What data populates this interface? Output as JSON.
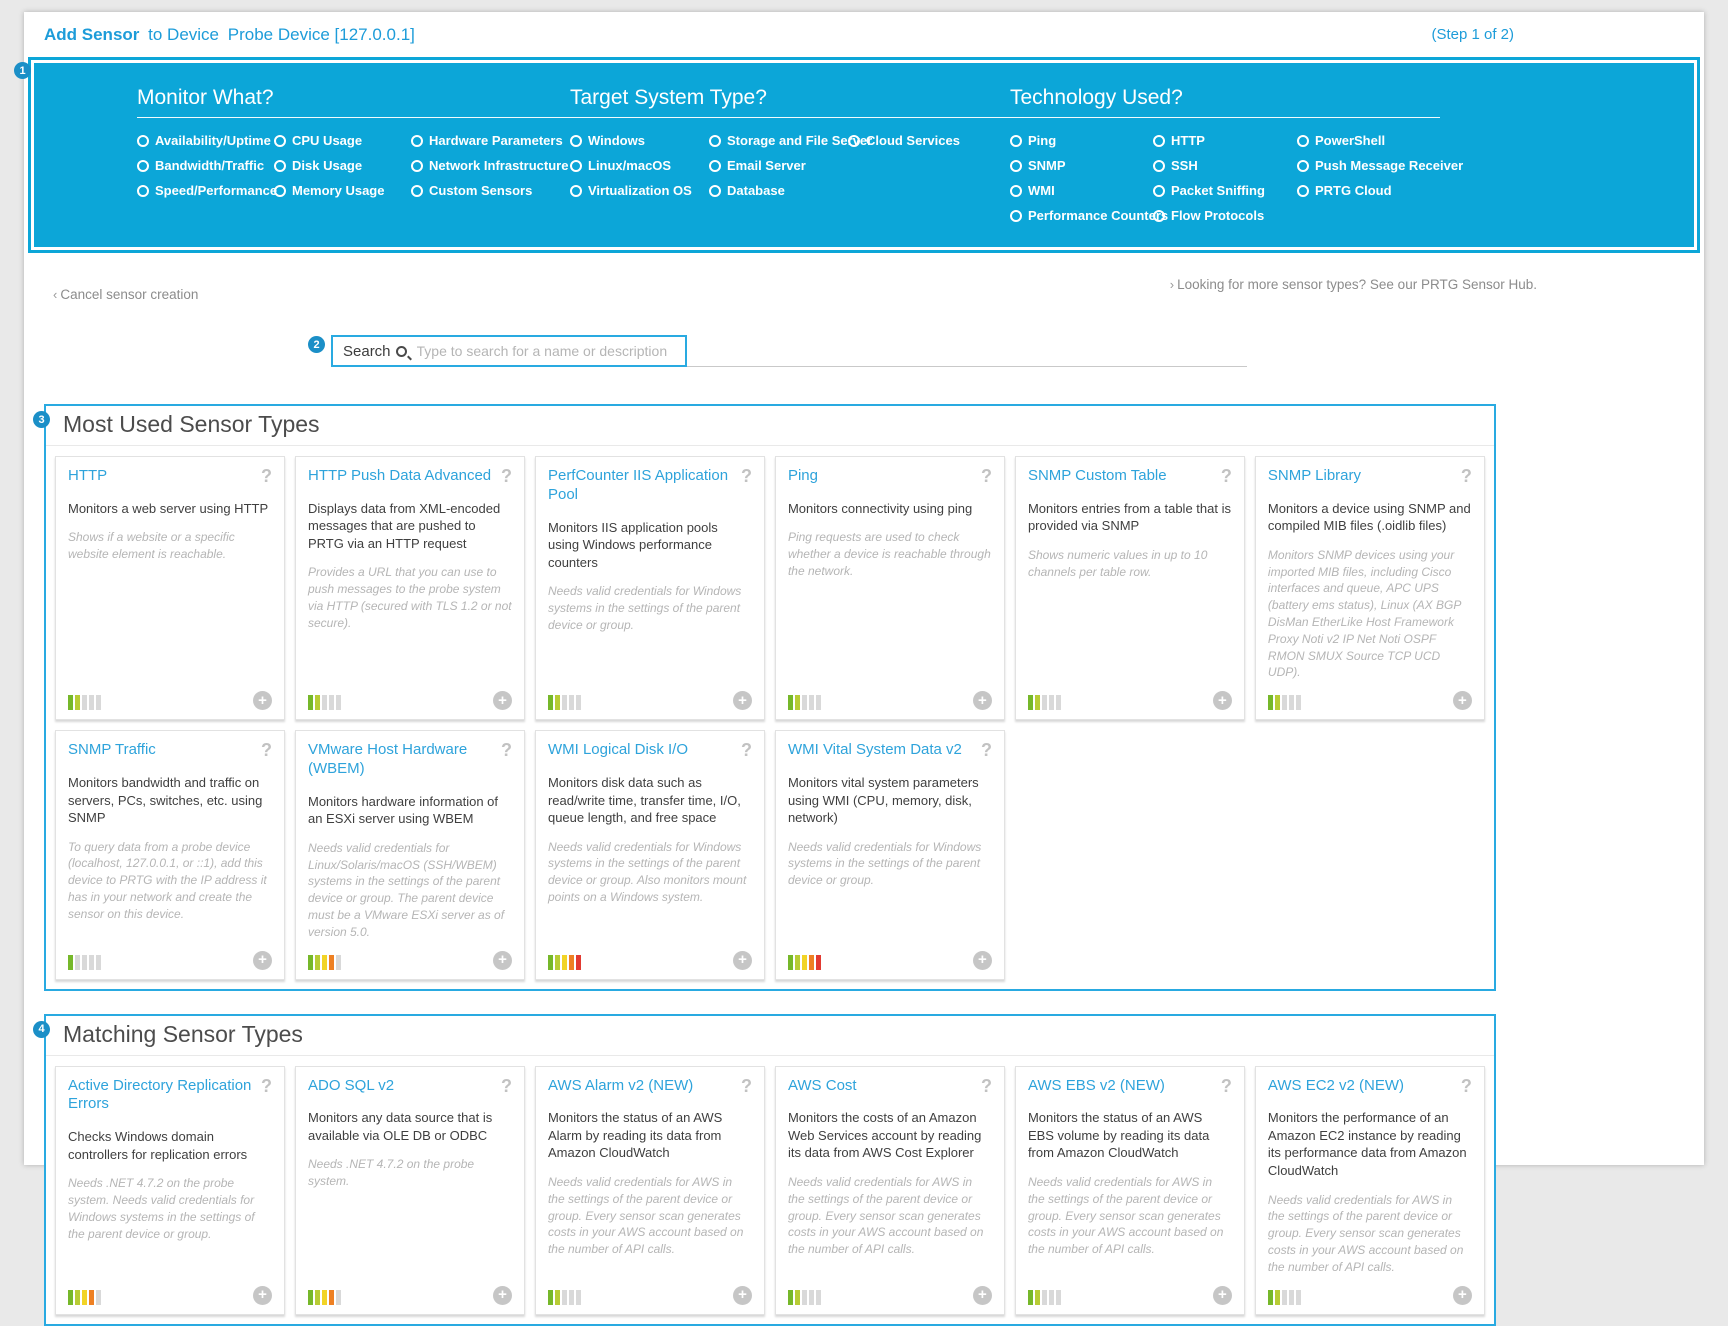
{
  "colors": {
    "accent_blue": "#0ca6d8",
    "link_blue": "#1d9cd9",
    "section_border": "#29aae1",
    "gauge_palette": [
      "#76b82a",
      "#b8cc35",
      "#f2d426",
      "#ee8023",
      "#e23a32"
    ],
    "gauge_empty": "#d9d9d9"
  },
  "header": {
    "title_bold": "Add Sensor",
    "title_mid": "to Device",
    "device": "Probe Device [127.0.0.1]",
    "step": "(Step 1 of 2)"
  },
  "filter_panel": {
    "badge": "1",
    "groups": [
      {
        "title": "Monitor What?",
        "options": [
          "Availability/Uptime",
          "CPU Usage",
          "Hardware Parameters",
          "Bandwidth/Traffic",
          "Disk Usage",
          "Network Infrastructure",
          "Speed/Performance",
          "Memory Usage",
          "Custom Sensors"
        ]
      },
      {
        "title": "Target System Type?",
        "options": [
          "Windows",
          "Storage and File Server",
          "Cloud Services",
          "Linux/macOS",
          "Email Server",
          "",
          "Virtualization OS",
          "Database",
          ""
        ]
      },
      {
        "title": "Technology Used?",
        "options": [
          "Ping",
          "HTTP",
          "PowerShell",
          "SNMP",
          "SSH",
          "Push Message Receiver",
          "WMI",
          "Packet Sniffing",
          "PRTG Cloud",
          "Performance Counters",
          "Flow Protocols",
          ""
        ]
      }
    ]
  },
  "links": {
    "chevron_left": "‹",
    "cancel": "Cancel sensor creation",
    "chevron_right": "›",
    "hub": "Looking for more sensor types? See our PRTG Sensor Hub."
  },
  "search": {
    "badge": "2",
    "label": "Search",
    "placeholder": "Type to search for a name or description",
    "value": ""
  },
  "sections": [
    {
      "badge": "3",
      "title": "Most Used Sensor Types",
      "cards": [
        {
          "title": "HTTP",
          "desc": "Monitors a web server using HTTP",
          "fine": "Shows if a website or a specific website element is reachable.",
          "impact": 2
        },
        {
          "title": "HTTP Push Data Advanced",
          "desc": "Displays data from XML-encoded messages that are pushed to PRTG via an HTTP request",
          "fine": "Provides a URL that you can use to push messages to the probe system via HTTP (secured with TLS 1.2 or not secure).",
          "impact": 2
        },
        {
          "title": "PerfCounter IIS Application Pool",
          "desc": "Monitors IIS application pools using Windows performance counters",
          "fine": "Needs valid credentials for Windows systems in the settings of the parent device or group.",
          "impact": 2
        },
        {
          "title": "Ping",
          "desc": "Monitors connectivity using ping",
          "fine": "Ping requests are used to check whether a device is reachable through the network.",
          "impact": 2
        },
        {
          "title": "SNMP Custom Table",
          "desc": "Monitors entries from a table that is provided via SNMP",
          "fine": "Shows numeric values in up to 10 channels per table row.",
          "impact": 2
        },
        {
          "title": "SNMP Library",
          "desc": "Monitors a device using SNMP and compiled MIB files (.oidlib files)",
          "fine": "Monitors SNMP devices using your imported MIB files, including Cisco interfaces and queue, APC UPS (battery ems status), Linux (AX BGP DisMan EtherLike Host Framework Proxy Noti v2 IP Net Noti OSPF RMON SMUX Source TCP UCD UDP).",
          "impact": 2
        },
        {
          "title": "SNMP Traffic",
          "desc": "Monitors bandwidth and traffic on servers, PCs, switches, etc. using SNMP",
          "fine": "To query data from a probe device (localhost, 127.0.0.1, or ::1), add this device to PRTG with the IP address it has in your network and create the sensor on this device.",
          "impact": 1
        },
        {
          "title": "VMware Host Hardware (WBEM)",
          "desc": "Monitors hardware information of an ESXi server using WBEM",
          "fine": "Needs valid credentials for Linux/Solaris/macOS (SSH/WBEM) systems in the settings of the parent device or group. The parent device must be a VMware ESXi server as of version 5.0.",
          "impact": 4
        },
        {
          "title": "WMI Logical Disk I/O",
          "desc": "Monitors disk data such as read/write time, transfer time, I/O, queue length, and free space",
          "fine": "Needs valid credentials for Windows systems in the settings of the parent device or group. Also monitors mount points on a Windows system.",
          "impact": 5
        },
        {
          "title": "WMI Vital System Data v2",
          "desc": "Monitors vital system parameters using WMI (CPU, memory, disk, network)",
          "fine": "Needs valid credentials for Windows systems in the settings of the parent device or group.",
          "impact": 5
        }
      ]
    },
    {
      "badge": "4",
      "title": "Matching Sensor Types",
      "cards": [
        {
          "title": "Active Directory Replication Errors",
          "desc": "Checks Windows domain controllers for replication errors",
          "fine": "Needs .NET 4.7.2 on the probe system. Needs valid credentials for Windows systems in the settings of the parent device or group.",
          "impact": 4
        },
        {
          "title": "ADO SQL v2",
          "desc": "Monitors any data source that is available via OLE DB or ODBC",
          "fine": "Needs .NET 4.7.2 on the probe system.",
          "impact": 4
        },
        {
          "title": "AWS Alarm v2 (NEW)",
          "desc": "Monitors the status of an AWS Alarm by reading its data from Amazon CloudWatch",
          "fine": "Needs valid credentials for AWS in the settings of the parent device or group. Every sensor scan generates costs in your AWS account based on the number of API calls.",
          "impact": 2
        },
        {
          "title": "AWS Cost",
          "desc": "Monitors the costs of an Amazon Web Services account by reading its data from AWS Cost Explorer",
          "fine": "Needs valid credentials for AWS in the settings of the parent device or group. Every sensor scan generates costs in your AWS account based on the number of API calls.",
          "impact": 2
        },
        {
          "title": "AWS EBS v2 (NEW)",
          "desc": "Monitors the status of an AWS EBS volume by reading its data from Amazon CloudWatch",
          "fine": "Needs valid credentials for AWS in the settings of the parent device or group. Every sensor scan generates costs in your AWS account based on the number of API calls.",
          "impact": 2
        },
        {
          "title": "AWS EC2 v2 (NEW)",
          "desc": "Monitors the performance of an Amazon EC2 instance by reading its performance data from Amazon CloudWatch",
          "fine": "Needs valid credentials for AWS in the settings of the parent device or group. Every sensor scan generates costs in your AWS account based on the number of API calls.",
          "impact": 2
        }
      ]
    }
  ]
}
